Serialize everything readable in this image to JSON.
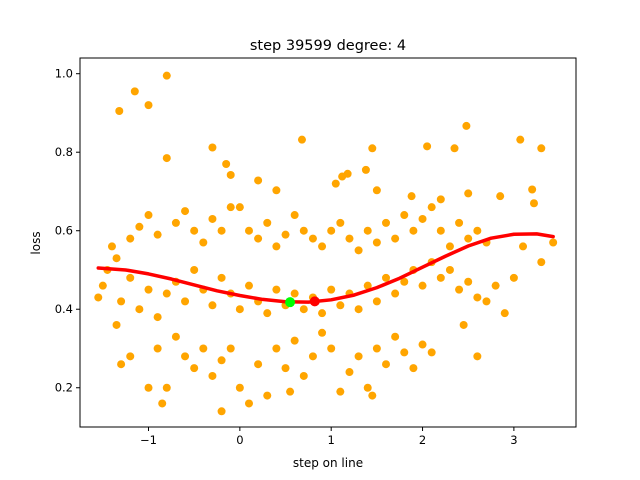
{
  "chart_data": {
    "type": "scatter",
    "title": "step 39599   degree: 4",
    "xlabel": "step on line",
    "ylabel": "loss",
    "xlim": [
      -1.75,
      3.68
    ],
    "ylim": [
      0.1,
      1.04
    ],
    "xticks": [
      -1,
      0,
      1,
      2,
      3
    ],
    "yticks": [
      0.2,
      0.4,
      0.6,
      0.8,
      1.0
    ],
    "xtick_labels": [
      "−1",
      "0",
      "1",
      "2",
      "3"
    ],
    "ytick_labels": [
      "0.2",
      "0.4",
      "0.6",
      "0.8",
      "1.0"
    ],
    "grid": false,
    "legend": "none",
    "colors": {
      "points": "#ffa500",
      "fit": "#ff0000",
      "green_marker": "#00ff00",
      "red_marker": "#ff0000"
    },
    "series": [
      {
        "kind": "scatter",
        "color": "#ffa500",
        "points": [
          [
            -0.8,
            0.995
          ],
          [
            -1.0,
            0.92
          ],
          [
            -1.15,
            0.955
          ],
          [
            -1.32,
            0.905
          ],
          [
            -0.3,
            0.812
          ],
          [
            -0.1,
            0.742
          ],
          [
            -0.15,
            0.77
          ],
          [
            -0.8,
            0.785
          ],
          [
            0.68,
            0.832
          ],
          [
            1.45,
            0.81
          ],
          [
            1.38,
            0.755
          ],
          [
            2.35,
            0.81
          ],
          [
            3.07,
            0.832
          ],
          [
            3.3,
            0.81
          ],
          [
            2.48,
            0.867
          ],
          [
            2.05,
            0.815
          ],
          [
            0.2,
            0.728
          ],
          [
            0.4,
            0.703
          ],
          [
            1.12,
            0.738
          ],
          [
            1.18,
            0.745
          ],
          [
            1.05,
            0.72
          ],
          [
            1.5,
            0.703
          ],
          [
            1.88,
            0.688
          ],
          [
            2.2,
            0.68
          ],
          [
            2.5,
            0.695
          ],
          [
            2.85,
            0.688
          ],
          [
            3.2,
            0.705
          ],
          [
            3.22,
            0.67
          ],
          [
            -1.4,
            0.56
          ],
          [
            -1.35,
            0.53
          ],
          [
            -1.2,
            0.58
          ],
          [
            -1.1,
            0.61
          ],
          [
            -1.0,
            0.64
          ],
          [
            -0.9,
            0.59
          ],
          [
            -0.7,
            0.62
          ],
          [
            -0.6,
            0.65
          ],
          [
            -0.5,
            0.6
          ],
          [
            -0.4,
            0.57
          ],
          [
            -0.3,
            0.63
          ],
          [
            -0.2,
            0.6
          ],
          [
            -0.1,
            0.66
          ],
          [
            0.0,
            0.66
          ],
          [
            0.1,
            0.6
          ],
          [
            0.2,
            0.58
          ],
          [
            0.3,
            0.62
          ],
          [
            0.4,
            0.56
          ],
          [
            0.5,
            0.59
          ],
          [
            0.6,
            0.64
          ],
          [
            0.7,
            0.6
          ],
          [
            0.8,
            0.58
          ],
          [
            0.9,
            0.56
          ],
          [
            1.0,
            0.6
          ],
          [
            1.1,
            0.62
          ],
          [
            1.2,
            0.58
          ],
          [
            1.3,
            0.55
          ],
          [
            1.4,
            0.6
          ],
          [
            1.5,
            0.57
          ],
          [
            1.6,
            0.62
          ],
          [
            1.7,
            0.58
          ],
          [
            1.8,
            0.64
          ],
          [
            1.9,
            0.6
          ],
          [
            2.0,
            0.63
          ],
          [
            2.1,
            0.66
          ],
          [
            2.2,
            0.6
          ],
          [
            2.3,
            0.56
          ],
          [
            2.4,
            0.62
          ],
          [
            2.5,
            0.58
          ],
          [
            2.6,
            0.6
          ],
          [
            2.7,
            0.57
          ],
          [
            3.1,
            0.56
          ],
          [
            3.3,
            0.52
          ],
          [
            3.43,
            0.57
          ],
          [
            -1.55,
            0.43
          ],
          [
            -1.5,
            0.46
          ],
          [
            -1.45,
            0.5
          ],
          [
            -1.3,
            0.42
          ],
          [
            -1.2,
            0.48
          ],
          [
            -1.1,
            0.4
          ],
          [
            -1.0,
            0.45
          ],
          [
            -0.9,
            0.38
          ],
          [
            -0.8,
            0.44
          ],
          [
            -0.7,
            0.47
          ],
          [
            -0.6,
            0.42
          ],
          [
            -0.5,
            0.5
          ],
          [
            -0.4,
            0.45
          ],
          [
            -0.3,
            0.41
          ],
          [
            -0.2,
            0.48
          ],
          [
            -0.1,
            0.44
          ],
          [
            0.0,
            0.4
          ],
          [
            0.1,
            0.46
          ],
          [
            0.2,
            0.42
          ],
          [
            0.3,
            0.39
          ],
          [
            0.4,
            0.45
          ],
          [
            0.5,
            0.41
          ],
          [
            0.6,
            0.44
          ],
          [
            0.7,
            0.4
          ],
          [
            0.8,
            0.43
          ],
          [
            0.9,
            0.39
          ],
          [
            1.0,
            0.45
          ],
          [
            1.1,
            0.41
          ],
          [
            1.2,
            0.44
          ],
          [
            1.3,
            0.4
          ],
          [
            1.4,
            0.46
          ],
          [
            1.5,
            0.42
          ],
          [
            1.6,
            0.48
          ],
          [
            1.7,
            0.44
          ],
          [
            1.8,
            0.47
          ],
          [
            1.9,
            0.5
          ],
          [
            2.0,
            0.46
          ],
          [
            2.1,
            0.52
          ],
          [
            2.2,
            0.48
          ],
          [
            2.3,
            0.5
          ],
          [
            2.4,
            0.45
          ],
          [
            2.5,
            0.47
          ],
          [
            2.6,
            0.43
          ],
          [
            2.7,
            0.42
          ],
          [
            2.8,
            0.46
          ],
          [
            2.9,
            0.39
          ],
          [
            3.0,
            0.48
          ],
          [
            2.45,
            0.36
          ],
          [
            -1.35,
            0.36
          ],
          [
            -1.3,
            0.26
          ],
          [
            -1.2,
            0.28
          ],
          [
            -1.0,
            0.2
          ],
          [
            -0.9,
            0.3
          ],
          [
            -0.85,
            0.16
          ],
          [
            -0.8,
            0.2
          ],
          [
            -0.7,
            0.33
          ],
          [
            -0.6,
            0.28
          ],
          [
            -0.5,
            0.25
          ],
          [
            -0.4,
            0.3
          ],
          [
            -0.3,
            0.23
          ],
          [
            -0.2,
            0.27
          ],
          [
            -0.1,
            0.3
          ],
          [
            -0.2,
            0.14
          ],
          [
            0.0,
            0.2
          ],
          [
            0.1,
            0.16
          ],
          [
            0.2,
            0.26
          ],
          [
            0.3,
            0.18
          ],
          [
            0.4,
            0.3
          ],
          [
            0.5,
            0.25
          ],
          [
            0.6,
            0.32
          ],
          [
            0.7,
            0.23
          ],
          [
            0.8,
            0.28
          ],
          [
            0.9,
            0.34
          ],
          [
            1.0,
            0.3
          ],
          [
            1.1,
            0.19
          ],
          [
            1.2,
            0.24
          ],
          [
            1.3,
            0.28
          ],
          [
            1.4,
            0.2
          ],
          [
            1.5,
            0.3
          ],
          [
            1.6,
            0.26
          ],
          [
            1.7,
            0.33
          ],
          [
            1.8,
            0.29
          ],
          [
            1.9,
            0.25
          ],
          [
            2.0,
            0.31
          ],
          [
            2.1,
            0.29
          ],
          [
            2.6,
            0.28
          ],
          [
            1.45,
            0.18
          ],
          [
            0.55,
            0.19
          ]
        ]
      },
      {
        "kind": "line",
        "color": "#ff0000",
        "points": [
          [
            -1.55,
            0.505
          ],
          [
            -1.25,
            0.5
          ],
          [
            -1.0,
            0.49
          ],
          [
            -0.75,
            0.477
          ],
          [
            -0.5,
            0.462
          ],
          [
            -0.25,
            0.447
          ],
          [
            0.0,
            0.435
          ],
          [
            0.25,
            0.425
          ],
          [
            0.5,
            0.419
          ],
          [
            0.75,
            0.418
          ],
          [
            1.0,
            0.424
          ],
          [
            1.25,
            0.436
          ],
          [
            1.5,
            0.455
          ],
          [
            1.75,
            0.479
          ],
          [
            2.0,
            0.507
          ],
          [
            2.25,
            0.535
          ],
          [
            2.5,
            0.561
          ],
          [
            2.75,
            0.581
          ],
          [
            3.0,
            0.591
          ],
          [
            3.25,
            0.592
          ],
          [
            3.43,
            0.585
          ]
        ]
      },
      {
        "kind": "marker",
        "color": "#00ff00",
        "points": [
          [
            0.55,
            0.418
          ]
        ]
      },
      {
        "kind": "marker",
        "color": "#ff0000",
        "points": [
          [
            0.82,
            0.42
          ]
        ]
      }
    ]
  }
}
